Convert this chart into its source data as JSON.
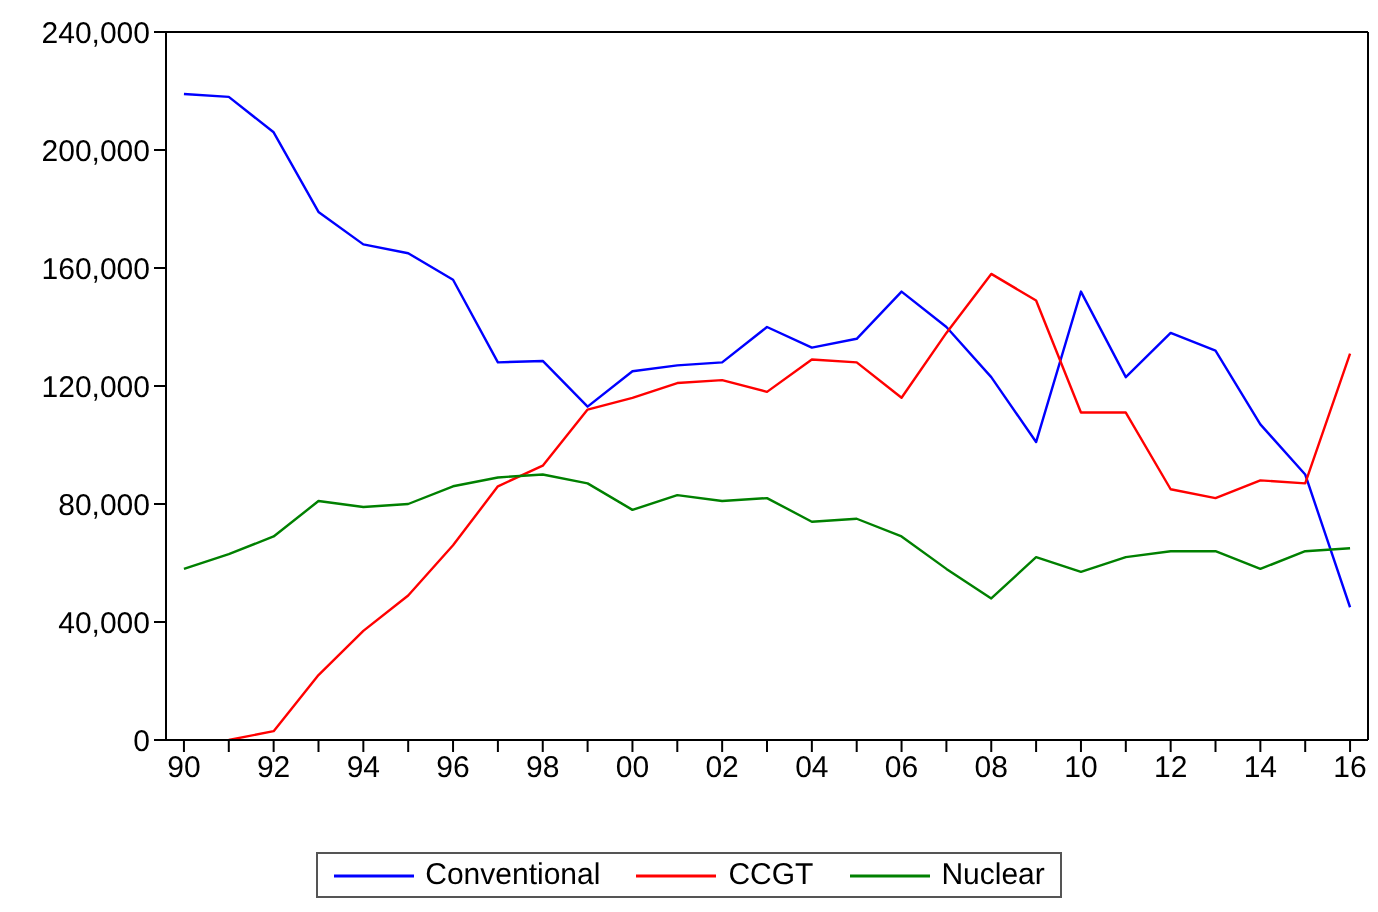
{
  "chart_data": {
    "type": "line",
    "x": [
      1990,
      1991,
      1992,
      1993,
      1994,
      1995,
      1996,
      1997,
      1998,
      1999,
      2000,
      2001,
      2002,
      2003,
      2004,
      2005,
      2006,
      2007,
      2008,
      2009,
      2010,
      2011,
      2012,
      2013,
      2014,
      2015,
      2016
    ],
    "series": [
      {
        "name": "Conventional",
        "color": "#0000ff",
        "values": [
          219000,
          218000,
          206000,
          179000,
          168000,
          165000,
          156000,
          128000,
          128500,
          113000,
          125000,
          127000,
          128000,
          140000,
          133000,
          136000,
          152000,
          140000,
          123000,
          101000,
          152000,
          123000,
          138000,
          132000,
          107000,
          90000,
          45000
        ]
      },
      {
        "name": "CCGT",
        "color": "#ff0000",
        "values": [
          null,
          0,
          3000,
          22000,
          37000,
          49000,
          66000,
          86000,
          93000,
          112000,
          116000,
          121000,
          122000,
          118000,
          129000,
          128000,
          116000,
          138000,
          158000,
          149000,
          111000,
          111000,
          85000,
          82000,
          88000,
          87000,
          131000
        ]
      },
      {
        "name": "Nuclear",
        "color": "#008000",
        "values": [
          58000,
          63000,
          69000,
          81000,
          79000,
          80000,
          86000,
          89000,
          90000,
          87000,
          78000,
          83000,
          81000,
          82000,
          74000,
          75000,
          69000,
          58000,
          48000,
          62000,
          57000,
          62000,
          64000,
          64000,
          58000,
          64000,
          65000
        ]
      }
    ],
    "xlim": [
      1989.6,
      2016.4
    ],
    "xticks": [
      {
        "value": 1990,
        "label": "90"
      },
      {
        "value": 1991,
        "label": null
      },
      {
        "value": 1992,
        "label": "92"
      },
      {
        "value": 1993,
        "label": null
      },
      {
        "value": 1994,
        "label": "94"
      },
      {
        "value": 1995,
        "label": null
      },
      {
        "value": 1996,
        "label": "96"
      },
      {
        "value": 1997,
        "label": null
      },
      {
        "value": 1998,
        "label": "98"
      },
      {
        "value": 1999,
        "label": null
      },
      {
        "value": 2000,
        "label": "00"
      },
      {
        "value": 2001,
        "label": null
      },
      {
        "value": 2002,
        "label": "02"
      },
      {
        "value": 2003,
        "label": null
      },
      {
        "value": 2004,
        "label": "04"
      },
      {
        "value": 2005,
        "label": null
      },
      {
        "value": 2006,
        "label": "06"
      },
      {
        "value": 2007,
        "label": null
      },
      {
        "value": 2008,
        "label": "08"
      },
      {
        "value": 2009,
        "label": null
      },
      {
        "value": 2010,
        "label": "10"
      },
      {
        "value": 2011,
        "label": null
      },
      {
        "value": 2012,
        "label": "12"
      },
      {
        "value": 2013,
        "label": null
      },
      {
        "value": 2014,
        "label": "14"
      },
      {
        "value": 2015,
        "label": null
      },
      {
        "value": 2016,
        "label": "16"
      }
    ],
    "ylim": [
      0,
      240000
    ],
    "yticks": [
      0,
      {
        "value": 40000,
        "label": "40,000"
      },
      {
        "value": 80000,
        "label": "80,000"
      },
      {
        "value": 120000,
        "label": "120,000"
      },
      {
        "value": 160000,
        "label": "160,000"
      },
      {
        "value": 200000,
        "label": "200,000"
      },
      {
        "value": 240000,
        "label": "240,000"
      }
    ],
    "grid": false,
    "legend": "bottom",
    "marker": "none",
    "line_style": "solid"
  }
}
